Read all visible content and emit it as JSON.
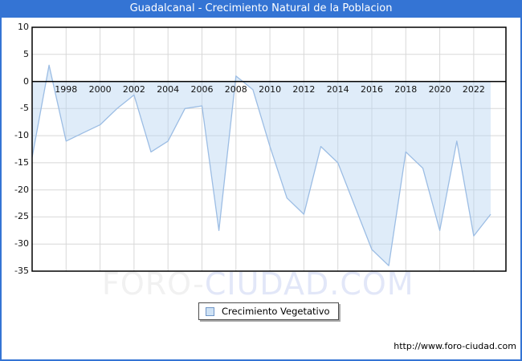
{
  "header": {
    "title": "Guadalcanal - Crecimiento Natural de la Poblacion",
    "bg_color": "#3474d4",
    "text_color": "#ffffff"
  },
  "legend": {
    "label": "Crecimiento Vegetativo",
    "swatch_fill": "#cfe2f5",
    "swatch_border": "#7096c8"
  },
  "watermark": {
    "part1": "FORO-",
    "part2": "CIUDAD.COM"
  },
  "footer": {
    "url": "http://www.foro-ciudad.com"
  },
  "chart_data": {
    "type": "area",
    "title": "Guadalcanal - Crecimiento Natural de la Poblacion",
    "series_name": "Crecimiento Vegetativo",
    "x": [
      1996,
      1997,
      1998,
      1999,
      2000,
      2001,
      2002,
      2003,
      2004,
      2005,
      2006,
      2007,
      2008,
      2009,
      2010,
      2011,
      2012,
      2013,
      2014,
      2015,
      2016,
      2017,
      2018,
      2019,
      2020,
      2021,
      2022,
      2023
    ],
    "values": [
      -14,
      3,
      -11,
      -9.5,
      -8,
      -5,
      -2.5,
      -13,
      -11,
      -5,
      -4.5,
      -27.5,
      1,
      -1.5,
      -12,
      -21.5,
      -24.5,
      -12,
      -15,
      -23,
      -31,
      -34,
      -13,
      -16,
      -27.5,
      -11,
      -28.5,
      -24.5
    ],
    "ylim": [
      -35,
      10
    ],
    "ytick_step": 5,
    "yticks": [
      10,
      5,
      0,
      -5,
      -10,
      -15,
      -20,
      -25,
      -30,
      -35
    ],
    "xticks_labeled": [
      1998,
      2000,
      2002,
      2004,
      2006,
      2008,
      2010,
      2012,
      2014,
      2016,
      2018,
      2020,
      2022
    ],
    "grid": true,
    "zero_baseline": true,
    "legend_position": "bottom-center",
    "line_color": "#9cbde4",
    "fill_color": "#dcebfa",
    "grid_color": "#d8d8d8",
    "zero_line_color": "#000000"
  }
}
